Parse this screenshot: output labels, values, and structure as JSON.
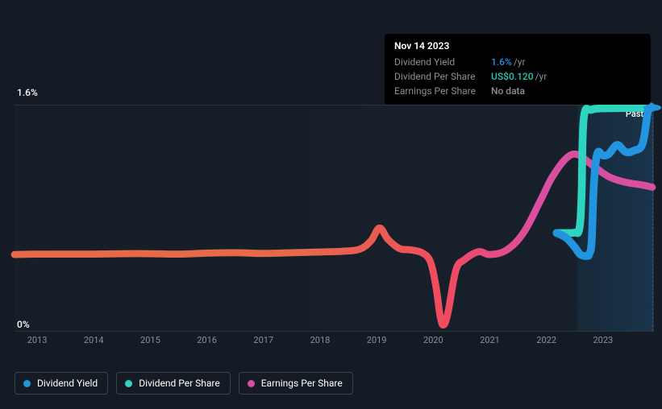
{
  "tooltip": {
    "date": "Nov 14 2023",
    "rows": [
      {
        "label": "Dividend Yield",
        "value": "1.6%",
        "suffix": "/yr",
        "colorClass": "blue"
      },
      {
        "label": "Dividend Per Share",
        "value": "US$0.120",
        "suffix": "/yr",
        "colorClass": "teal"
      },
      {
        "label": "Earnings Per Share",
        "value": "No data",
        "suffix": "",
        "colorClass": "grey"
      }
    ]
  },
  "chart": {
    "type": "line",
    "background_color": "#151b24",
    "plot_bg": "rgba(25,36,50,0.35)",
    "grid_color": "#2a3441",
    "y_axis": {
      "top_label": "1.6%",
      "bottom_label": "0%",
      "y_min": 0,
      "y_max": 1.6
    },
    "x_axis": {
      "min": 2012.6,
      "max": 2023.9,
      "ticks": [
        2013,
        2014,
        2015,
        2016,
        2017,
        2018,
        2019,
        2020,
        2021,
        2022,
        2023
      ]
    },
    "vertical_marker_x": 2023.87,
    "future_shade_start_x": 2022.55,
    "past_label": {
      "text": "Past",
      "x": 2023.4
    },
    "series": [
      {
        "name": "Earnings Per Share",
        "stroke_width": 2.2,
        "gradient": [
          {
            "offset": 0,
            "color": "#e8684a"
          },
          {
            "offset": 0.45,
            "color": "#e8684a"
          },
          {
            "offset": 0.6,
            "color": "#eb5855"
          },
          {
            "offset": 0.68,
            "color": "#f04a60"
          },
          {
            "offset": 0.82,
            "color": "#d94fa0"
          },
          {
            "offset": 1.0,
            "color": "#d94fa0"
          }
        ],
        "points": [
          [
            2012.6,
            0.542
          ],
          [
            2013.0,
            0.545
          ],
          [
            2013.5,
            0.545
          ],
          [
            2014.0,
            0.545
          ],
          [
            2014.5,
            0.548
          ],
          [
            2015.0,
            0.548
          ],
          [
            2015.5,
            0.545
          ],
          [
            2016.0,
            0.552
          ],
          [
            2016.5,
            0.555
          ],
          [
            2017.0,
            0.55
          ],
          [
            2017.5,
            0.555
          ],
          [
            2018.0,
            0.56
          ],
          [
            2018.4,
            0.565
          ],
          [
            2018.7,
            0.58
          ],
          [
            2018.9,
            0.64
          ],
          [
            2019.05,
            0.73
          ],
          [
            2019.2,
            0.65
          ],
          [
            2019.4,
            0.585
          ],
          [
            2019.6,
            0.575
          ],
          [
            2019.8,
            0.555
          ],
          [
            2019.95,
            0.49
          ],
          [
            2020.05,
            0.31
          ],
          [
            2020.12,
            0.11
          ],
          [
            2020.18,
            0.042
          ],
          [
            2020.26,
            0.13
          ],
          [
            2020.4,
            0.43
          ],
          [
            2020.55,
            0.505
          ],
          [
            2020.8,
            0.562
          ],
          [
            2021.0,
            0.542
          ],
          [
            2021.3,
            0.575
          ],
          [
            2021.6,
            0.7
          ],
          [
            2021.9,
            0.93
          ],
          [
            2022.1,
            1.09
          ],
          [
            2022.35,
            1.225
          ],
          [
            2022.55,
            1.252
          ],
          [
            2022.8,
            1.18
          ],
          [
            2023.1,
            1.095
          ],
          [
            2023.4,
            1.055
          ],
          [
            2023.7,
            1.035
          ],
          [
            2023.87,
            1.02
          ]
        ]
      },
      {
        "name": "Dividend Per Share",
        "color": "#2dd4bf",
        "stroke_width": 2.4,
        "end_dot": true,
        "points": [
          [
            2022.18,
            0.695
          ],
          [
            2022.35,
            0.695
          ],
          [
            2022.5,
            0.698
          ],
          [
            2022.58,
            0.72
          ],
          [
            2022.62,
            0.95
          ],
          [
            2022.66,
            1.51
          ],
          [
            2022.8,
            1.57
          ],
          [
            2023.1,
            1.58
          ],
          [
            2023.5,
            1.582
          ],
          [
            2023.87,
            1.584
          ]
        ]
      },
      {
        "name": "Dividend Yield",
        "color": "#2394df",
        "stroke_width": 2.4,
        "end_dot": true,
        "points": [
          [
            2022.18,
            0.695
          ],
          [
            2022.35,
            0.66
          ],
          [
            2022.5,
            0.595
          ],
          [
            2022.6,
            0.542
          ],
          [
            2022.72,
            0.532
          ],
          [
            2022.76,
            0.548
          ],
          [
            2022.8,
            0.64
          ],
          [
            2022.84,
            1.05
          ],
          [
            2022.9,
            1.26
          ],
          [
            2023.0,
            1.245
          ],
          [
            2023.1,
            1.255
          ],
          [
            2023.25,
            1.32
          ],
          [
            2023.4,
            1.27
          ],
          [
            2023.55,
            1.28
          ],
          [
            2023.7,
            1.33
          ],
          [
            2023.8,
            1.57
          ],
          [
            2023.87,
            1.585
          ]
        ]
      }
    ]
  },
  "legend": [
    {
      "label": "Dividend Yield",
      "color": "#2394df"
    },
    {
      "label": "Dividend Per Share",
      "color": "#2dd4bf"
    },
    {
      "label": "Earnings Per Share",
      "color": "#d94fa0"
    }
  ]
}
